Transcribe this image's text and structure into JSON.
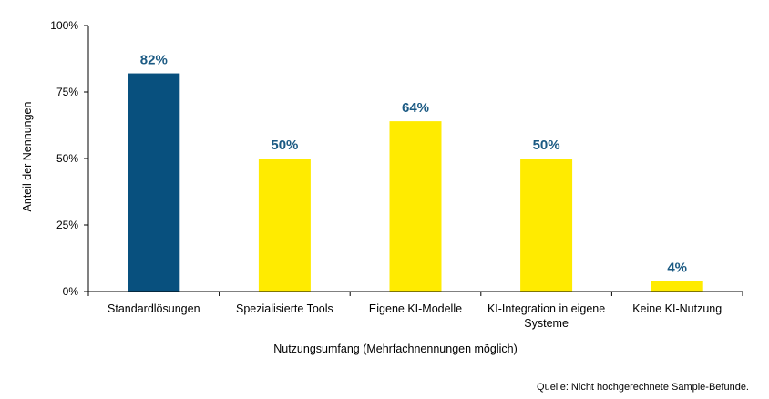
{
  "chart_data": {
    "type": "bar",
    "categories": [
      "Standardlösungen",
      "Spezialisierte Tools",
      "Eigene KI-Modelle",
      "KI-Integration in eigene Systeme",
      "Keine KI-Nutzung"
    ],
    "category_lines": [
      [
        "Standardlösungen"
      ],
      [
        "Spezialisierte Tools"
      ],
      [
        "Eigene KI-Modelle"
      ],
      [
        "KI-Integration in eigene",
        "Systeme"
      ],
      [
        "Keine KI-Nutzung"
      ]
    ],
    "values": [
      82,
      50,
      64,
      50,
      4
    ],
    "data_labels": [
      "82%",
      "50%",
      "64%",
      "50%",
      "4%"
    ],
    "bar_colors": [
      "#08507e",
      "#ffeb00",
      "#ffeb00",
      "#ffeb00",
      "#ffeb00"
    ],
    "label_color": "#1b5a83",
    "xlabel": "Nutzungsumfang (Mehrfachnennungen möglich)",
    "ylabel": "Anteil der Nennungen",
    "ylim": [
      0,
      100
    ],
    "yticks": [
      0,
      25,
      50,
      75,
      100
    ],
    "ytick_labels": [
      "0%",
      "25%",
      "50%",
      "75%",
      "100%"
    ],
    "grid": false,
    "legend": "none"
  },
  "source_note": "Quelle: Nicht hochgerechnete Sample-Befunde."
}
